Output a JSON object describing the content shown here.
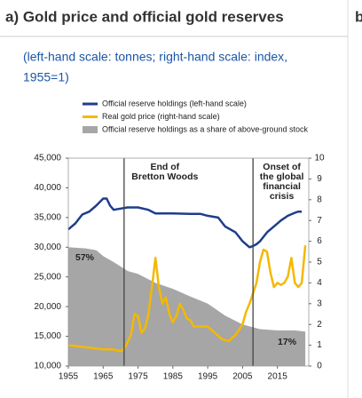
{
  "header": {
    "title": "a) Gold price and official gold reserves",
    "next_tab": "b"
  },
  "chart_data": {
    "type": "line",
    "subtitle_lines": [
      "(left-hand scale: tonnes; right-hand scale: index,",
      "1955=1)"
    ],
    "xlim": [
      1955,
      2024
    ],
    "xticks": [
      1955,
      1965,
      1975,
      1985,
      1995,
      2005,
      2015
    ],
    "ylim": [
      10000,
      45000
    ],
    "yticks": [
      {
        "value": 10000,
        "label": "10,000"
      },
      {
        "value": 15000,
        "label": "15,000"
      },
      {
        "value": 20000,
        "label": "20,000"
      },
      {
        "value": 25000,
        "label": "25,000"
      },
      {
        "value": 30000,
        "label": "30,000"
      },
      {
        "value": 35000,
        "label": "35,000"
      },
      {
        "value": 40000,
        "label": "40,000"
      },
      {
        "value": 45000,
        "label": "45,000"
      }
    ],
    "y2lim": [
      0,
      10
    ],
    "y2ticks": [
      0,
      1,
      2,
      3,
      4,
      5,
      6,
      7,
      8,
      9,
      10
    ],
    "series": [
      {
        "name": "Official reserve holdings (left-hand scale)",
        "color": "#1f3d8c",
        "kind": "line",
        "axis": "y",
        "x": [
          1955,
          1957,
          1959,
          1961,
          1963,
          1965,
          1966,
          1967,
          1968,
          1970,
          1972,
          1975,
          1978,
          1980,
          1985,
          1990,
          1993,
          1995,
          1998,
          2000,
          2003,
          2005,
          2007,
          2008,
          2009,
          2010,
          2012,
          2014,
          2016,
          2018,
          2020,
          2021,
          2022
        ],
        "values": [
          33000,
          34000,
          35500,
          36000,
          37000,
          38200,
          38200,
          37000,
          36300,
          36500,
          36700,
          36700,
          36300,
          35700,
          35700,
          35600,
          35600,
          35300,
          35000,
          33500,
          32500,
          31000,
          30000,
          30200,
          30500,
          31000,
          32500,
          33500,
          34500,
          35300,
          35800,
          36000,
          36000
        ]
      },
      {
        "name": "Real gold price (right-hand scale)",
        "color": "#f5b800",
        "kind": "line",
        "axis": "y2",
        "x": [
          1955,
          1960,
          1965,
          1968,
          1970,
          1971,
          1973,
          1974,
          1975,
          1976,
          1977,
          1978,
          1979,
          1980,
          1981,
          1982,
          1983,
          1984,
          1985,
          1986,
          1987,
          1988,
          1989,
          1990,
          1991,
          1993,
          1995,
          1997,
          1999,
          2001,
          2003,
          2005,
          2006,
          2007,
          2008,
          2009,
          2010,
          2011,
          2012,
          2013,
          2014,
          2015,
          2016,
          2017,
          2018,
          2019,
          2020,
          2021,
          2022,
          2023
        ],
        "values": [
          1.0,
          0.9,
          0.8,
          0.8,
          0.7,
          0.8,
          1.5,
          2.5,
          2.4,
          1.6,
          1.8,
          2.5,
          3.8,
          5.2,
          3.8,
          3.0,
          3.3,
          2.5,
          2.1,
          2.4,
          3.0,
          2.7,
          2.3,
          2.2,
          1.9,
          1.9,
          1.9,
          1.6,
          1.3,
          1.2,
          1.5,
          2.0,
          2.6,
          3.0,
          3.5,
          4.0,
          5.0,
          5.6,
          5.5,
          4.5,
          3.8,
          4.0,
          3.9,
          4.0,
          4.3,
          5.2,
          4.0,
          3.8,
          4.0,
          5.8
        ]
      },
      {
        "name": "Official reserve holdings as a share of above-ground stock",
        "color": "#a6a6a6",
        "kind": "area",
        "axis": "y",
        "x": [
          1955,
          1960,
          1963,
          1965,
          1968,
          1972,
          1975,
          1980,
          1985,
          1990,
          1995,
          2000,
          2005,
          2010,
          2015,
          2020,
          2023
        ],
        "values": [
          30000,
          29800,
          29500,
          28500,
          27500,
          26000,
          25500,
          24000,
          23000,
          21700,
          20500,
          18500,
          17000,
          16200,
          16000,
          16000,
          15800
        ],
        "first_label": "57%",
        "last_label": "17%"
      }
    ],
    "vlines": [
      {
        "x": 1971,
        "lines": [
          "End of",
          "Bretton Woods"
        ]
      },
      {
        "x": 2008,
        "lines": [
          "Onset of",
          "the global",
          "financial",
          "crisis"
        ]
      }
    ]
  }
}
